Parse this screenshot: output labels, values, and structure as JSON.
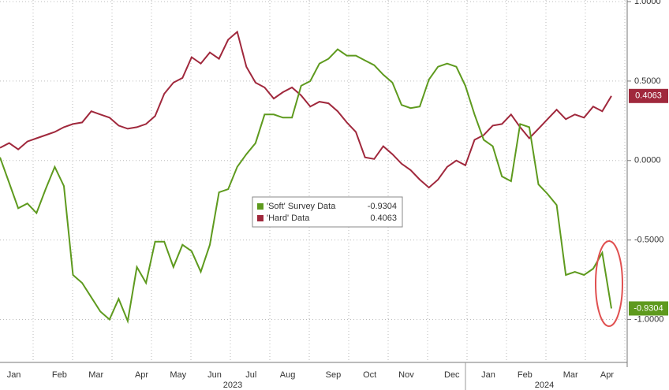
{
  "chart_data": {
    "type": "line",
    "categories": [
      null,
      "Jan",
      null,
      null,
      null,
      null,
      "Feb",
      null,
      null,
      null,
      "Mar",
      null,
      null,
      null,
      null,
      "Apr",
      null,
      null,
      null,
      "May",
      null,
      null,
      null,
      "Jun",
      null,
      null,
      null,
      "Jul",
      null,
      null,
      null,
      "Aug",
      null,
      null,
      null,
      null,
      "Sep",
      null,
      null,
      null,
      "Oct",
      null,
      null,
      null,
      "Nov",
      null,
      null,
      null,
      null,
      "Dec",
      null,
      null,
      null,
      "Jan",
      null,
      null,
      null,
      "Feb",
      null,
      null,
      null,
      null,
      "Mar",
      null,
      null,
      null,
      "Apr",
      null
    ],
    "x_year_labels": [
      "2023",
      "2024"
    ],
    "series": [
      {
        "name": "'Soft' Survey Data",
        "color": "#5e9a1e",
        "values": [
          0.02,
          -0.14,
          -0.3,
          -0.27,
          -0.33,
          -0.18,
          -0.04,
          -0.16,
          -0.72,
          -0.77,
          -0.86,
          -0.95,
          -1.0,
          -0.87,
          -1.01,
          -0.67,
          -0.77,
          -0.51,
          -0.51,
          -0.67,
          -0.53,
          -0.57,
          -0.7,
          -0.53,
          -0.2,
          -0.18,
          -0.04,
          0.04,
          0.11,
          0.29,
          0.29,
          0.27,
          0.27,
          0.47,
          0.5,
          0.61,
          0.64,
          0.7,
          0.66,
          0.66,
          0.63,
          0.6,
          0.54,
          0.49,
          0.35,
          0.33,
          0.34,
          0.51,
          0.59,
          0.61,
          0.59,
          0.47,
          0.29,
          0.13,
          0.09,
          -0.1,
          -0.13,
          0.23,
          0.21,
          -0.15,
          -0.21,
          -0.28,
          -0.72,
          -0.7,
          -0.72,
          -0.68,
          -0.58,
          -0.9304
        ]
      },
      {
        "name": "'Hard' Data",
        "color": "#a0283c",
        "values": [
          0.08,
          0.11,
          0.07,
          0.12,
          0.14,
          0.16,
          0.18,
          0.21,
          0.23,
          0.24,
          0.31,
          0.29,
          0.27,
          0.22,
          0.2,
          0.21,
          0.23,
          0.28,
          0.42,
          0.49,
          0.52,
          0.65,
          0.61,
          0.68,
          0.64,
          0.76,
          0.81,
          0.59,
          0.49,
          0.46,
          0.39,
          0.43,
          0.46,
          0.41,
          0.34,
          0.37,
          0.36,
          0.31,
          0.24,
          0.18,
          0.02,
          0.01,
          0.09,
          0.04,
          -0.02,
          -0.06,
          -0.12,
          -0.17,
          -0.12,
          -0.04,
          0.0,
          -0.03,
          0.13,
          0.16,
          0.22,
          0.23,
          0.29,
          0.21,
          0.14,
          0.2,
          0.26,
          0.32,
          0.26,
          0.29,
          0.27,
          0.34,
          0.31,
          0.4063
        ]
      }
    ],
    "ylim": [
      -1.27,
      1.01
    ],
    "yticks": [
      {
        "value": 1,
        "label": "1.0000"
      },
      {
        "value": 0.5,
        "label": "0.5000"
      },
      {
        "value": 0,
        "label": "0.0000"
      },
      {
        "value": -0.5,
        "label": "-0.5000"
      },
      {
        "value": -1,
        "label": "-1.0000"
      }
    ],
    "grid": true
  }
}
